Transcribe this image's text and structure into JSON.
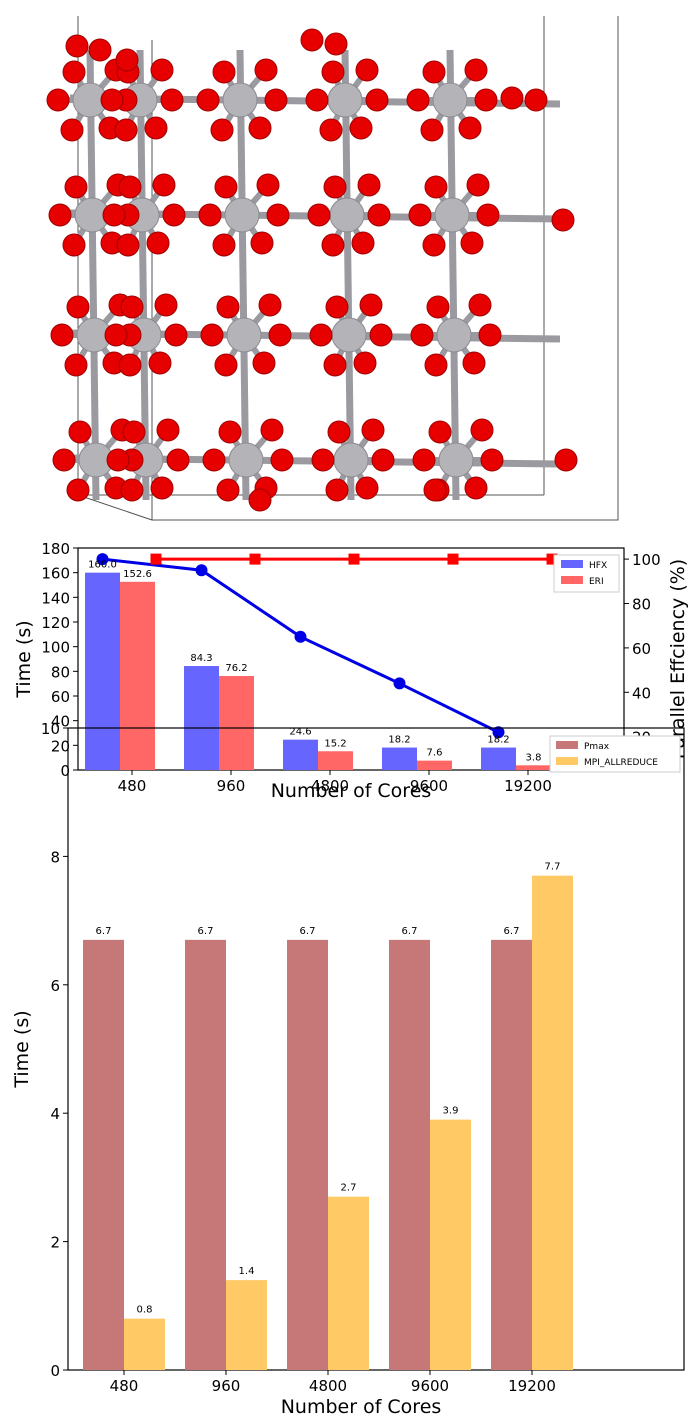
{
  "crystal": {
    "atom_colors": {
      "oxygen": "#e60000",
      "metal": "#b4b4b8",
      "bond": "#9a9aa0"
    },
    "box_color": "#555555"
  },
  "chart_data": [
    {
      "type": "bar",
      "categories": [
        "480",
        "960",
        "4800",
        "9600",
        "19200"
      ],
      "series": [
        {
          "name": "HFX",
          "values": [
            160.0,
            84.3,
            24.6,
            18.2,
            18.2
          ],
          "color": "#6666ff"
        },
        {
          "name": "ERI",
          "values": [
            152.6,
            76.2,
            15.2,
            7.6,
            3.8
          ],
          "color": "#ff6666"
        }
      ],
      "data_labels": [
        [
          "160.0",
          "84.3",
          "24.6",
          "18.2",
          "18.2"
        ],
        [
          "152.6",
          "76.2",
          "15.2",
          "7.6",
          "3.8"
        ]
      ],
      "xlabel": "Number of Cores",
      "ylabel": "Time (s)",
      "ylim": [
        0,
        180
      ],
      "yticks": [
        "0",
        "20",
        "40",
        "60",
        "80",
        "100",
        "120",
        "140",
        "160",
        "180"
      ],
      "y2label": "Parallel Effciency (%)",
      "y2lim": [
        5,
        105
      ],
      "y2ticks": [
        "20",
        "40",
        "60",
        "80",
        "100"
      ],
      "lines": [
        {
          "values": [
            100,
            95,
            65,
            44,
            22
          ],
          "color": "#0000e6",
          "marker": "circle",
          "offset": "hfx"
        },
        {
          "values": [
            100,
            100,
            100,
            100,
            100
          ],
          "color": "#ff0000",
          "marker": "square",
          "offset": "eri"
        }
      ],
      "legend": "top-right",
      "grid": false
    },
    {
      "type": "bar",
      "categories": [
        "480",
        "960",
        "4800",
        "9600",
        "19200"
      ],
      "series": [
        {
          "name": "Pmax",
          "values": [
            6.7,
            6.7,
            6.7,
            6.7,
            6.7
          ],
          "color": "#c67777"
        },
        {
          "name": "MPI_ALLREDUCE",
          "values": [
            0.8,
            1.4,
            2.7,
            3.9,
            7.7
          ],
          "color": "#ffc966"
        }
      ],
      "data_labels": [
        [
          "6.7",
          "6.7",
          "6.7",
          "6.7",
          "6.7"
        ],
        [
          "0.8",
          "1.4",
          "2.7",
          "3.9",
          "7.7"
        ]
      ],
      "xlabel": "Number of Cores",
      "ylabel": "Time (s)",
      "ylim": [
        0,
        10
      ],
      "yticks": [
        "0",
        "2",
        "4",
        "6",
        "8",
        "10"
      ],
      "legend": "top-right",
      "grid": false
    }
  ]
}
